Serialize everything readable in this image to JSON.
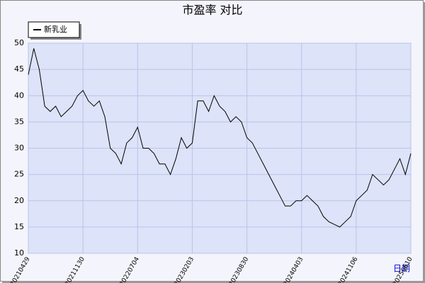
{
  "chart_data": {
    "type": "line",
    "title": "市盈率  对比",
    "x_label": "日期",
    "categories": [
      "20210429",
      null,
      null,
      null,
      null,
      null,
      null,
      null,
      null,
      null,
      "20211130",
      null,
      null,
      null,
      null,
      null,
      null,
      null,
      null,
      null,
      "20220704",
      null,
      null,
      null,
      null,
      null,
      null,
      null,
      null,
      null,
      "20230203",
      null,
      null,
      null,
      null,
      null,
      null,
      null,
      null,
      null,
      "20230830",
      null,
      null,
      null,
      null,
      null,
      null,
      null,
      null,
      null,
      "20240403",
      null,
      null,
      null,
      null,
      null,
      null,
      null,
      null,
      null,
      "20241106",
      null,
      null,
      null,
      null,
      null,
      null,
      null,
      null,
      null,
      "20250610"
    ],
    "series": [
      {
        "name": "新乳业",
        "color": "#000000",
        "values": [
          44,
          49,
          45,
          38,
          37,
          38,
          36,
          37,
          38,
          40,
          41,
          39,
          38,
          39,
          36,
          30,
          29,
          27,
          31,
          32,
          34,
          30,
          30,
          29,
          27,
          27,
          25,
          28,
          32,
          30,
          31,
          39,
          39,
          37,
          40,
          38,
          37,
          35,
          36,
          35,
          32,
          31,
          29,
          27,
          25,
          23,
          21,
          19,
          19,
          20,
          20,
          21,
          20,
          19,
          17,
          16,
          15.5,
          15,
          16,
          17,
          20,
          21,
          22,
          25,
          24,
          23,
          24,
          26,
          28,
          25,
          29
        ]
      }
    ],
    "ylim": [
      10,
      50
    ],
    "yticks": [
      10,
      15,
      20,
      25,
      30,
      35,
      40,
      45,
      50
    ],
    "grid": true,
    "legend": "top-left"
  }
}
